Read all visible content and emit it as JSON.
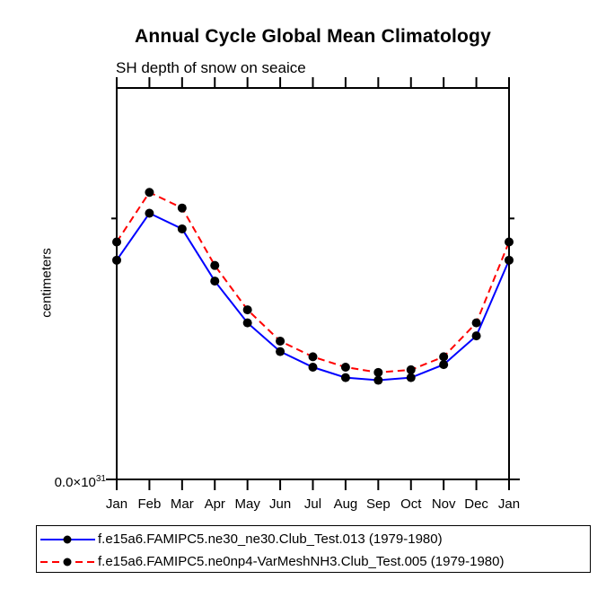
{
  "window": {
    "background": "#ffffff"
  },
  "chart_data": {
    "type": "line",
    "title": "Annual Cycle Global Mean Climatology",
    "subtitle": "SH depth of snow on seaice",
    "ylabel": "centimeters",
    "x_categories": [
      "Jan",
      "Feb",
      "Mar",
      "Apr",
      "May",
      "Jun",
      "Jul",
      "Aug",
      "Sep",
      "Oct",
      "Nov",
      "Dec",
      "Jan"
    ],
    "y_axis": {
      "ylim": [
        0,
        1.5
      ],
      "unit_note": "values in 10^31 centimeters (only the 0.0 tick is labeled)",
      "tick_values": [
        0.0,
        1.0
      ],
      "labeled_tick_value": 0.0,
      "tick_label_mantissa": "0.0×10",
      "tick_label_exponent": "31",
      "grid": false
    },
    "series": [
      {
        "name": "f.e15a6.FAMIPC5.ne30_ne30.Club_Test.013 (1979-1980)",
        "color": "#0000ff",
        "line_style": "solid",
        "marker": "filled-circle",
        "marker_color": "#000000",
        "values": [
          0.84,
          1.02,
          0.96,
          0.76,
          0.6,
          0.49,
          0.43,
          0.39,
          0.38,
          0.39,
          0.44,
          0.55,
          0.84
        ]
      },
      {
        "name": "f.e15a6.FAMIPC5.ne0np4-VarMeshNH3.Club_Test.005 (1979-1980)",
        "color": "#ff0000",
        "line_style": "dashed",
        "marker": "filled-circle",
        "marker_color": "#000000",
        "values": [
          0.91,
          1.1,
          1.04,
          0.82,
          0.65,
          0.53,
          0.47,
          0.43,
          0.41,
          0.42,
          0.47,
          0.6,
          0.91
        ]
      }
    ],
    "legend_position": "bottom-left framed box",
    "axis_color": "#000000"
  }
}
